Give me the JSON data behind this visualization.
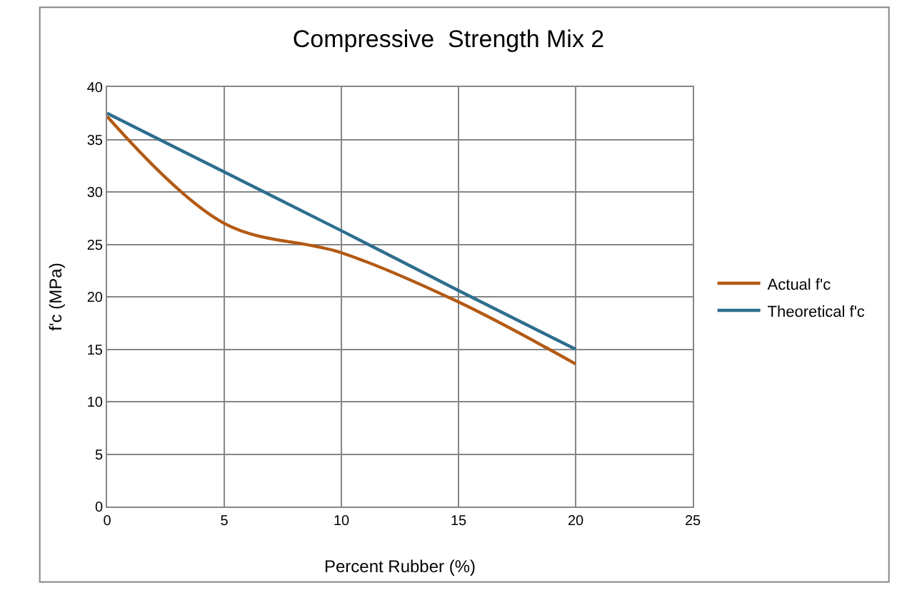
{
  "chart_data": {
    "type": "line",
    "title": "Compressive  Strength Mix 2",
    "xlabel": "Percent Rubber (%)",
    "ylabel": "f'c (MPa)",
    "x": [
      0,
      5,
      10,
      15,
      20
    ],
    "series": [
      {
        "name": "Actual f'c",
        "color": "#b35a14",
        "values": [
          37.2,
          27,
          24.2,
          19.5,
          13.6
        ]
      },
      {
        "name": "Theoretical f'c",
        "color": "#2e6e8e",
        "values": [
          37.5,
          31.9,
          26.3,
          20.6,
          15
        ]
      }
    ],
    "xlim": [
      0,
      25
    ],
    "xticks": [
      0,
      5,
      10,
      15,
      20,
      25
    ],
    "ylim": [
      0,
      40
    ],
    "yticks": [
      0,
      5,
      10,
      15,
      20,
      25,
      30,
      35,
      40
    ],
    "grid": true,
    "legend": "right",
    "marker": "none",
    "line_style": "solid"
  }
}
